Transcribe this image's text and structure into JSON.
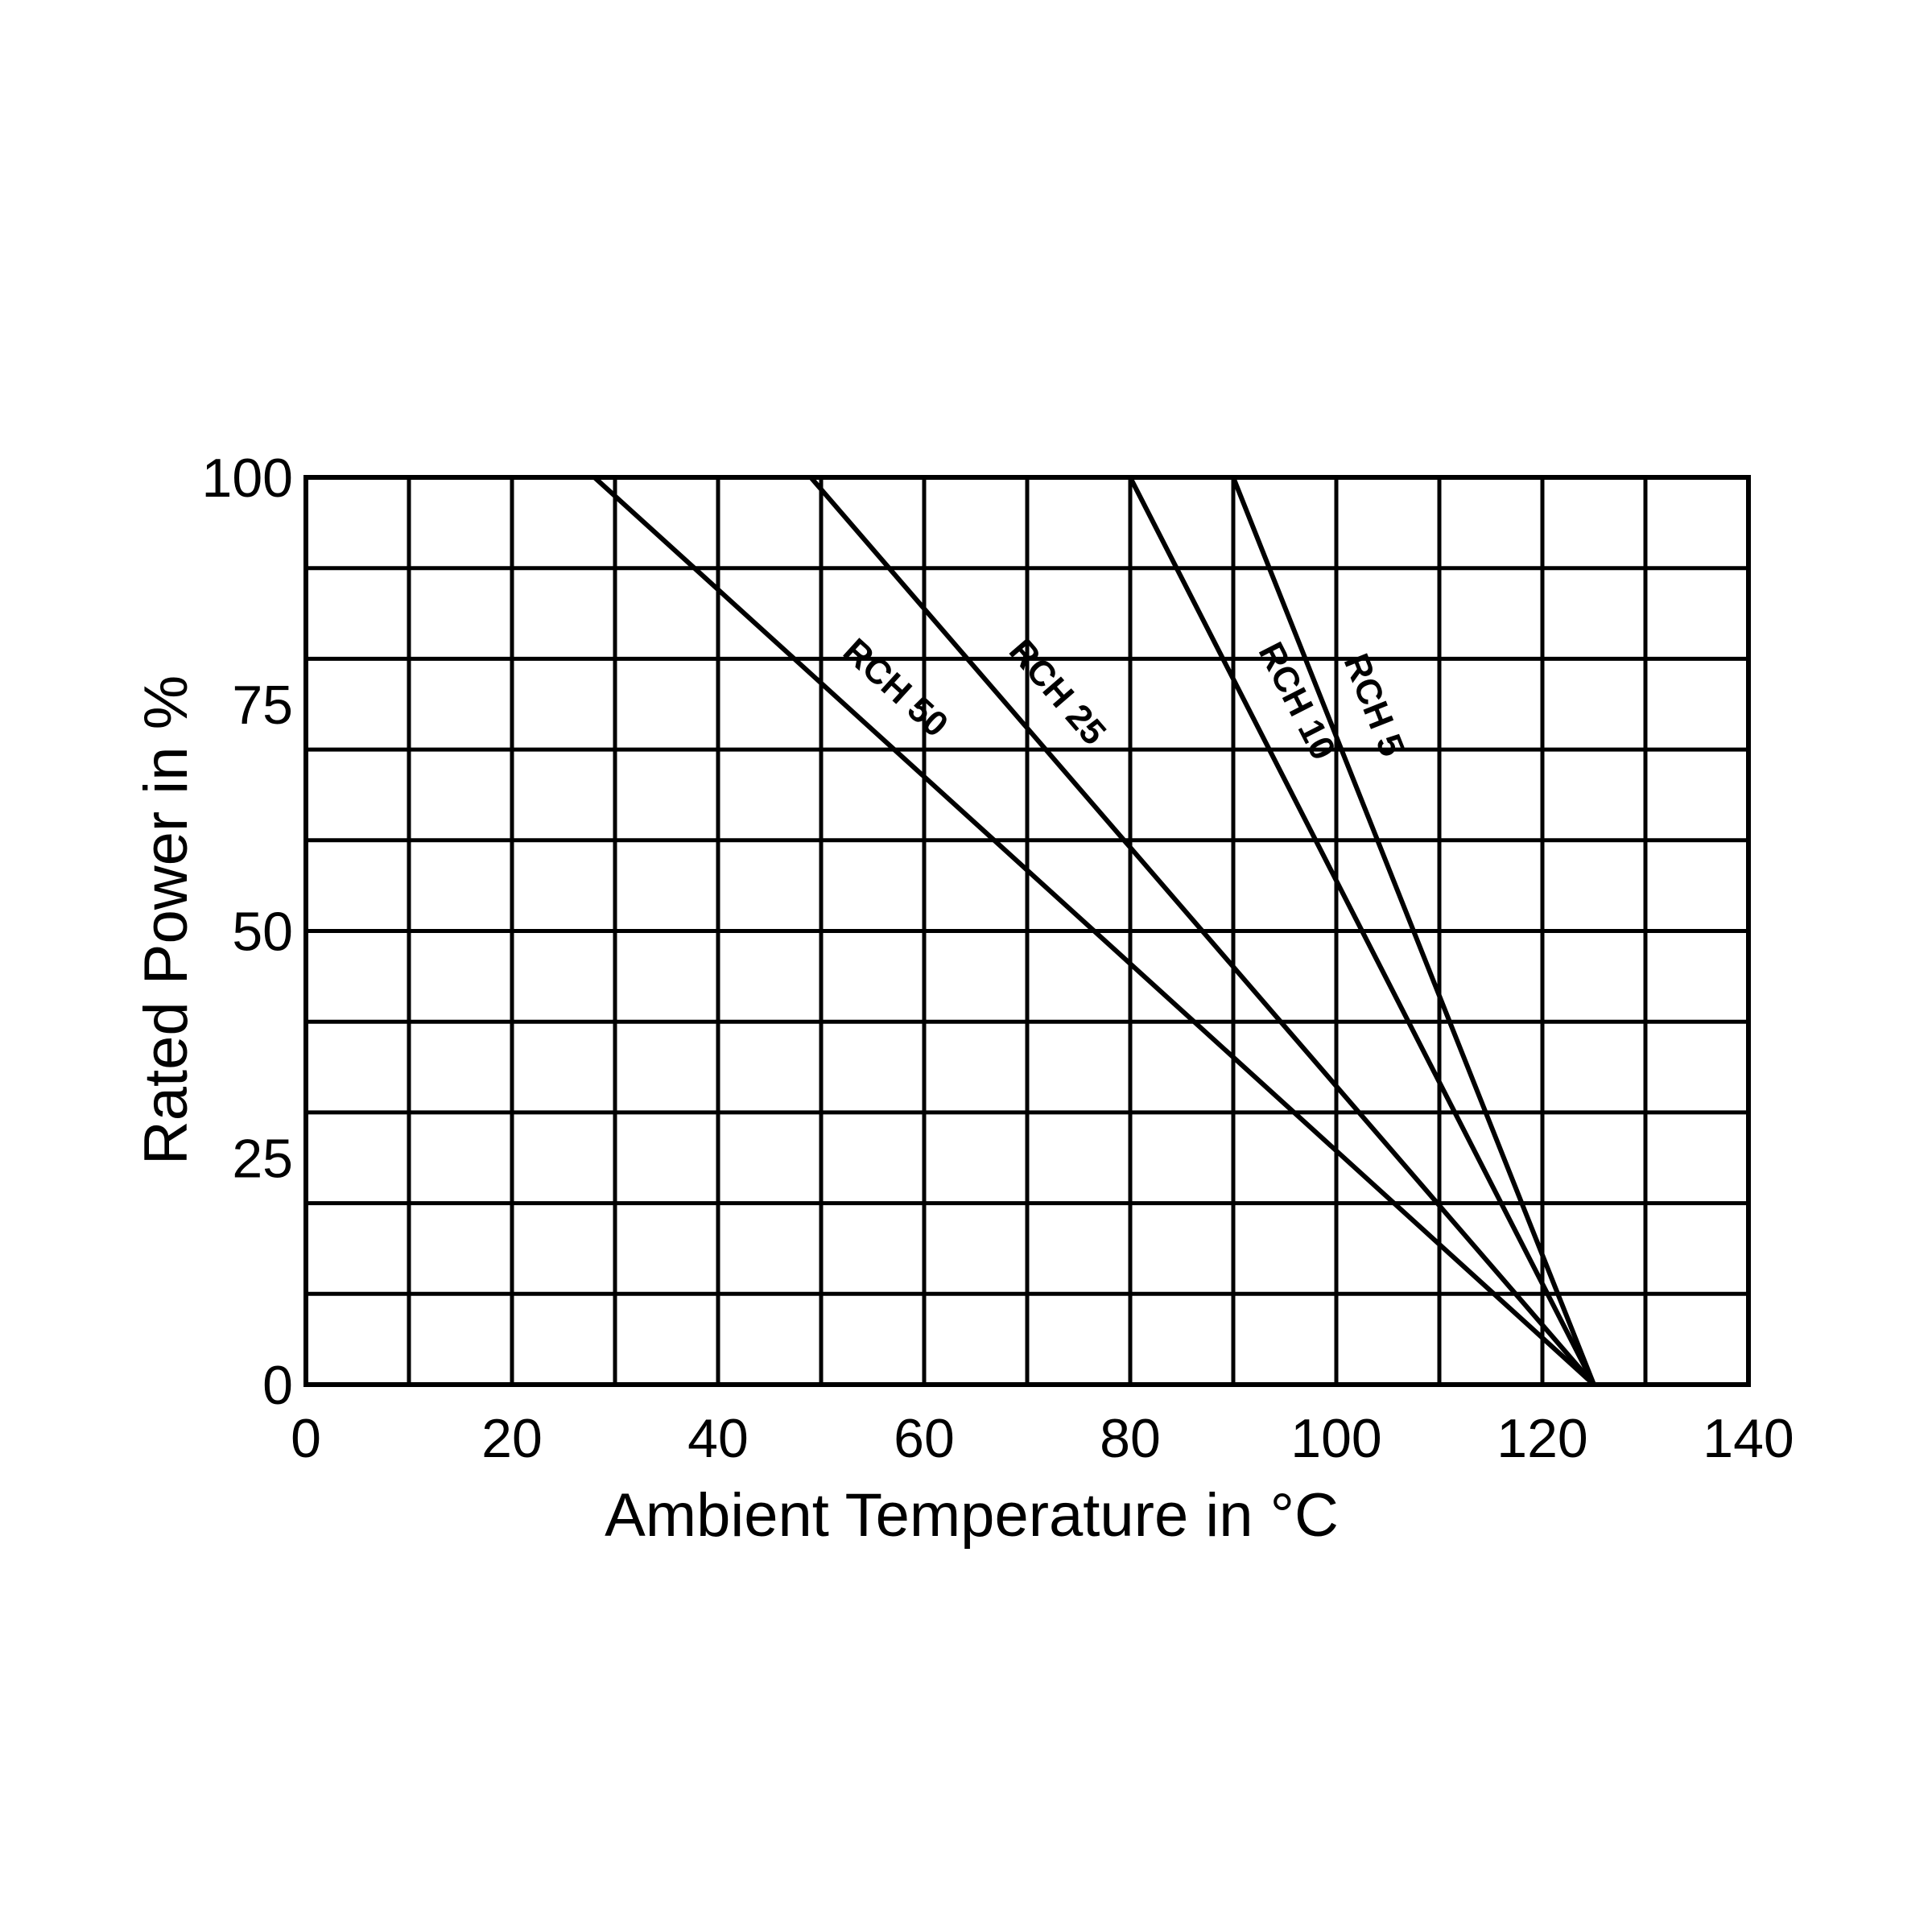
{
  "chart_data": {
    "type": "line",
    "title": "",
    "xlabel": "Ambient Temperature in °C",
    "ylabel": "Rated Power in %",
    "xlim": [
      0,
      140
    ],
    "ylim": [
      0,
      100
    ],
    "x_ticks": [
      "0",
      "20",
      "40",
      "60",
      "80",
      "100",
      "120",
      "140"
    ],
    "y_ticks": [
      "0",
      "25",
      "50",
      "75",
      "100"
    ],
    "x_gridlines": [
      0,
      10,
      20,
      30,
      40,
      50,
      60,
      70,
      80,
      90,
      100,
      110,
      120,
      130,
      140
    ],
    "y_gridlines": [
      0,
      10,
      20,
      30,
      40,
      50,
      60,
      70,
      80,
      90,
      100
    ],
    "grid": true,
    "line_color": "#000000",
    "series": [
      {
        "name": "RCH 50",
        "x": [
          28,
          125
        ],
        "y": [
          100,
          0
        ]
      },
      {
        "name": "RCH 25",
        "x": [
          49,
          125
        ],
        "y": [
          100,
          0
        ]
      },
      {
        "name": "RCH 10",
        "x": [
          80,
          125
        ],
        "y": [
          100,
          0
        ]
      },
      {
        "name": "RCH 5",
        "x": [
          90,
          125
        ],
        "y": [
          100,
          0
        ]
      }
    ]
  }
}
